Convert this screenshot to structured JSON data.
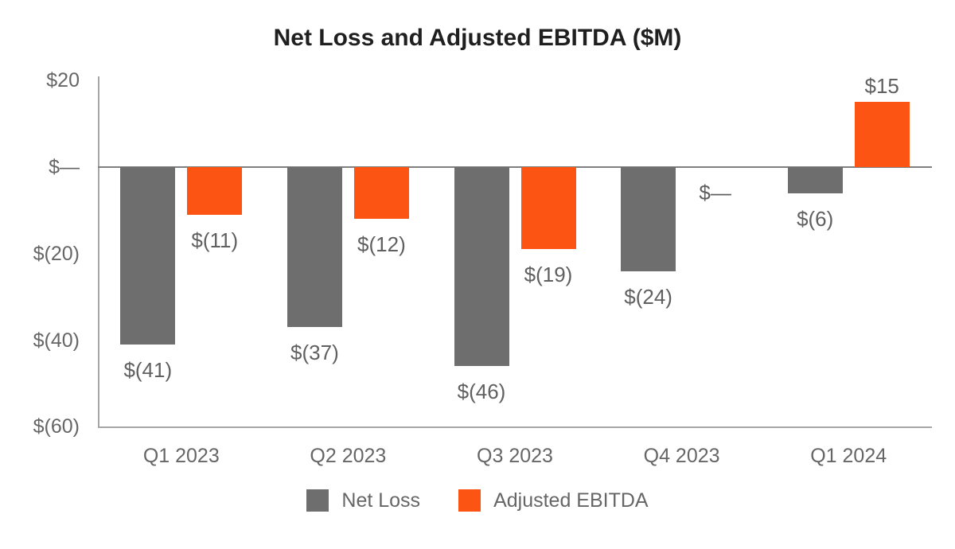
{
  "title": "Net Loss and Adjusted EBITDA ($M)",
  "colors": {
    "net_loss": "#6E6E6E",
    "adjusted_ebitda": "#FC5413",
    "axis_line": "#a6a6a6",
    "zero_line": "#808080",
    "title_text": "#1f1f1f",
    "label_text": "#666666"
  },
  "chart_data": {
    "type": "bar",
    "title": "Net Loss and Adjusted EBITDA ($M)",
    "categories": [
      "Q1 2023",
      "Q2 2023",
      "Q3 2023",
      "Q4 2023",
      "Q1 2024"
    ],
    "series": [
      {
        "name": "Net Loss",
        "color": "#6E6E6E",
        "values": [
          -41,
          -37,
          -46,
          -24,
          -6
        ],
        "labels": [
          "$(41)",
          "$(37)",
          "$(46)",
          "$(24)",
          "$(6)"
        ]
      },
      {
        "name": "Adjusted EBITDA",
        "color": "#FC5413",
        "values": [
          -11,
          -12,
          -19,
          0,
          15
        ],
        "labels": [
          "$(11)",
          "$(12)",
          "$(19)",
          "$—",
          "$15"
        ]
      }
    ],
    "y_ticks": [
      {
        "value": 20,
        "label": "$20"
      },
      {
        "value": 0,
        "label": "$—"
      },
      {
        "value": -20,
        "label": "$(20)"
      },
      {
        "value": -40,
        "label": "$(40)"
      },
      {
        "value": -60,
        "label": "$(60)"
      }
    ],
    "ylim": [
      -60,
      21
    ],
    "xlabel": "",
    "ylabel": "",
    "grid": false,
    "legend_position": "bottom"
  }
}
